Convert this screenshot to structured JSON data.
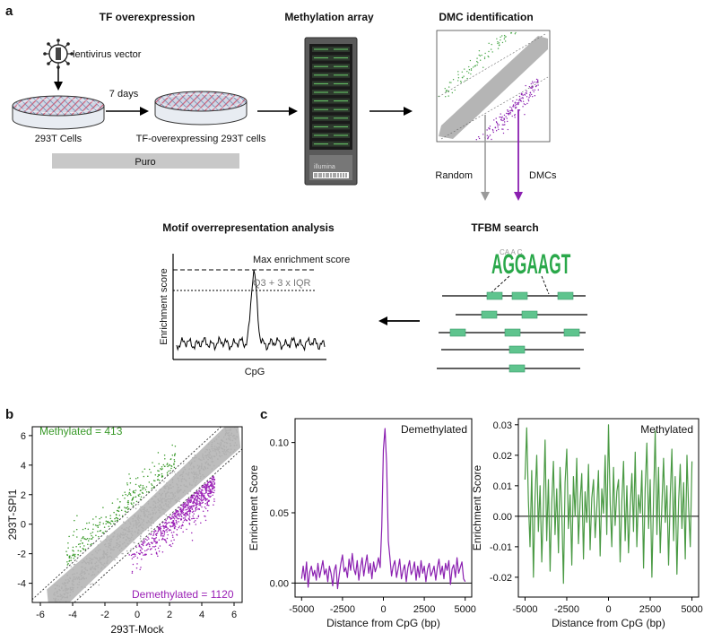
{
  "panel_a": {
    "label": "a",
    "tf_overexpression": {
      "title": "TF overexpression",
      "vector_label": "lentivirus vector",
      "days_label": "7 days",
      "cells_label": "293T Cells",
      "tf_cells_label": "TF-overexpressing 293T cells",
      "selection_label": "Puro"
    },
    "methylation_array": {
      "title": "Methylation array",
      "brand": "illumina"
    },
    "dmc_identification": {
      "title": "DMC identification",
      "random_label": "Random",
      "dmcs_label": "DMCs"
    },
    "tfbm_search": {
      "title": "TFBM search",
      "motif_text": "AGGAAGT"
    },
    "motif_analysis": {
      "title": "Motif overrepresentation analysis",
      "max_label": "Max enrichment score",
      "threshold_label": "Q3 + 3 x IQR",
      "ylabel": "Enrichment score",
      "xlabel": "CpG"
    },
    "colors": {
      "green": "#4aa84a",
      "purple": "#8a1fb0",
      "gray": "#9a9a9a",
      "motif_box": "#5fc48e"
    }
  },
  "panel_b": {
    "label": "b",
    "chart_data": {
      "type": "scatter",
      "xlabel": "293T-Mock",
      "ylabel": "293T-SPI1",
      "xlim": [
        -6.5,
        6.5
      ],
      "ylim": [
        -5.3,
        6.6
      ],
      "xticks": [
        -6,
        -4,
        -2,
        0,
        2,
        4,
        6
      ],
      "yticks": [
        -4,
        -2,
        0,
        2,
        4,
        6
      ],
      "annotations": [
        {
          "text": "Methylated = 413",
          "color": "#3a9a2a"
        },
        {
          "text": "Demethylated = 1120",
          "color": "#9a1fb5"
        }
      ],
      "threshold_lines": [
        {
          "slope": 1,
          "intercept": 1.4
        },
        {
          "slope": 1,
          "intercept": -1.4
        }
      ],
      "counts": {
        "methylated": 413,
        "demethylated": 1120
      }
    }
  },
  "panel_c": {
    "label": "c",
    "chart_data": [
      {
        "type": "line",
        "title": "Demethylated",
        "xlabel": "Distance from CpG (bp)",
        "ylabel": "Enrichment Score",
        "xlim": [
          -5400,
          5400
        ],
        "ylim": [
          -0.01,
          0.117
        ],
        "xticks": [
          -5000,
          -2500,
          0,
          2500,
          5000
        ],
        "yticks": [
          0.0,
          0.05,
          0.1
        ],
        "ytick_labels": [
          "0.00",
          "0.05",
          "0.10"
        ],
        "color": "#8a1fb0",
        "x_step": 100,
        "x_start": -5000,
        "values": [
          0.003,
          0.012,
          0.002,
          0.015,
          -0.003,
          0.008,
          0.012,
          0.005,
          0.009,
          0.002,
          0.014,
          0.004,
          0.01,
          0.016,
          0.006,
          0.01,
          0.001,
          0.012,
          0.007,
          -0.002,
          0.009,
          0.013,
          -0.004,
          0.006,
          0.014,
          0.02,
          0.008,
          0.011,
          0.004,
          0.017,
          0.009,
          0.021,
          0.01,
          0.006,
          0.016,
          0.002,
          0.011,
          0.018,
          0.005,
          0.013,
          0.02,
          0.007,
          0.014,
          0.003,
          0.015,
          0.008,
          0.012,
          0.018,
          0.011,
          0.04,
          0.095,
          0.11,
          0.085,
          0.03,
          0.018,
          0.005,
          0.012,
          0.016,
          0.004,
          0.01,
          0.017,
          0.003,
          0.009,
          0.013,
          0.001,
          0.011,
          0.016,
          0.006,
          0.009,
          0.015,
          0.002,
          0.012,
          0.004,
          0.016,
          0.007,
          0.012,
          0.001,
          0.01,
          0.014,
          0.005,
          0.008,
          0.012,
          0.002,
          0.011,
          0.017,
          0.006,
          0.012,
          0.003,
          0.014,
          0.009,
          0.016,
          -0.001,
          0.01,
          0.013,
          0.004,
          0.018,
          0.007,
          0.011,
          0.015,
          0.003,
          0.001
        ]
      },
      {
        "type": "line",
        "title": "Methylated",
        "xlabel": "Distance from CpG (bp)",
        "ylabel": "Enrichment Score",
        "xlim": [
          -5400,
          5400
        ],
        "ylim": [
          -0.0265,
          0.032
        ],
        "xticks": [
          -5000,
          -2500,
          0,
          2500,
          5000
        ],
        "yticks": [
          -0.02,
          -0.01,
          0.0,
          0.01,
          0.02,
          0.03
        ],
        "ytick_labels": [
          "-0.02",
          "-0.01",
          "0.00",
          "0.01",
          "0.02",
          "0.03"
        ],
        "color": "#4a9a44",
        "x_step": 100,
        "x_start": -5000,
        "values": [
          0.012,
          0.029,
          0.005,
          -0.01,
          0.015,
          -0.02,
          0.006,
          0.02,
          -0.005,
          0.01,
          -0.015,
          0.003,
          0.025,
          -0.008,
          0.012,
          -0.018,
          0.004,
          0.018,
          -0.006,
          0.009,
          -0.012,
          0.016,
          0.002,
          -0.022,
          0.011,
          0.022,
          -0.004,
          0.007,
          -0.016,
          0.013,
          0.0,
          0.019,
          -0.009,
          0.005,
          0.014,
          -0.014,
          0.008,
          -0.002,
          0.017,
          -0.011,
          0.006,
          0.012,
          -0.007,
          0.003,
          0.015,
          -0.013,
          0.009,
          0.001,
          0.02,
          -0.006,
          0.03,
          0.004,
          -0.01,
          0.016,
          -0.003,
          0.008,
          0.012,
          -0.015,
          0.005,
          0.018,
          -0.008,
          0.01,
          -0.012,
          0.003,
          0.014,
          -0.005,
          0.021,
          -0.01,
          0.007,
          0.001,
          0.015,
          -0.017,
          0.009,
          0.024,
          -0.004,
          0.012,
          -0.02,
          0.006,
          0.028,
          -0.006,
          0.016,
          -0.012,
          0.004,
          0.019,
          -0.002,
          0.01,
          -0.016,
          0.007,
          0.022,
          -0.008,
          0.013,
          -0.019,
          0.005,
          0.017,
          -0.004,
          0.011,
          -0.014,
          0.02,
          0.003,
          -0.01,
          0.018
        ]
      }
    ]
  }
}
